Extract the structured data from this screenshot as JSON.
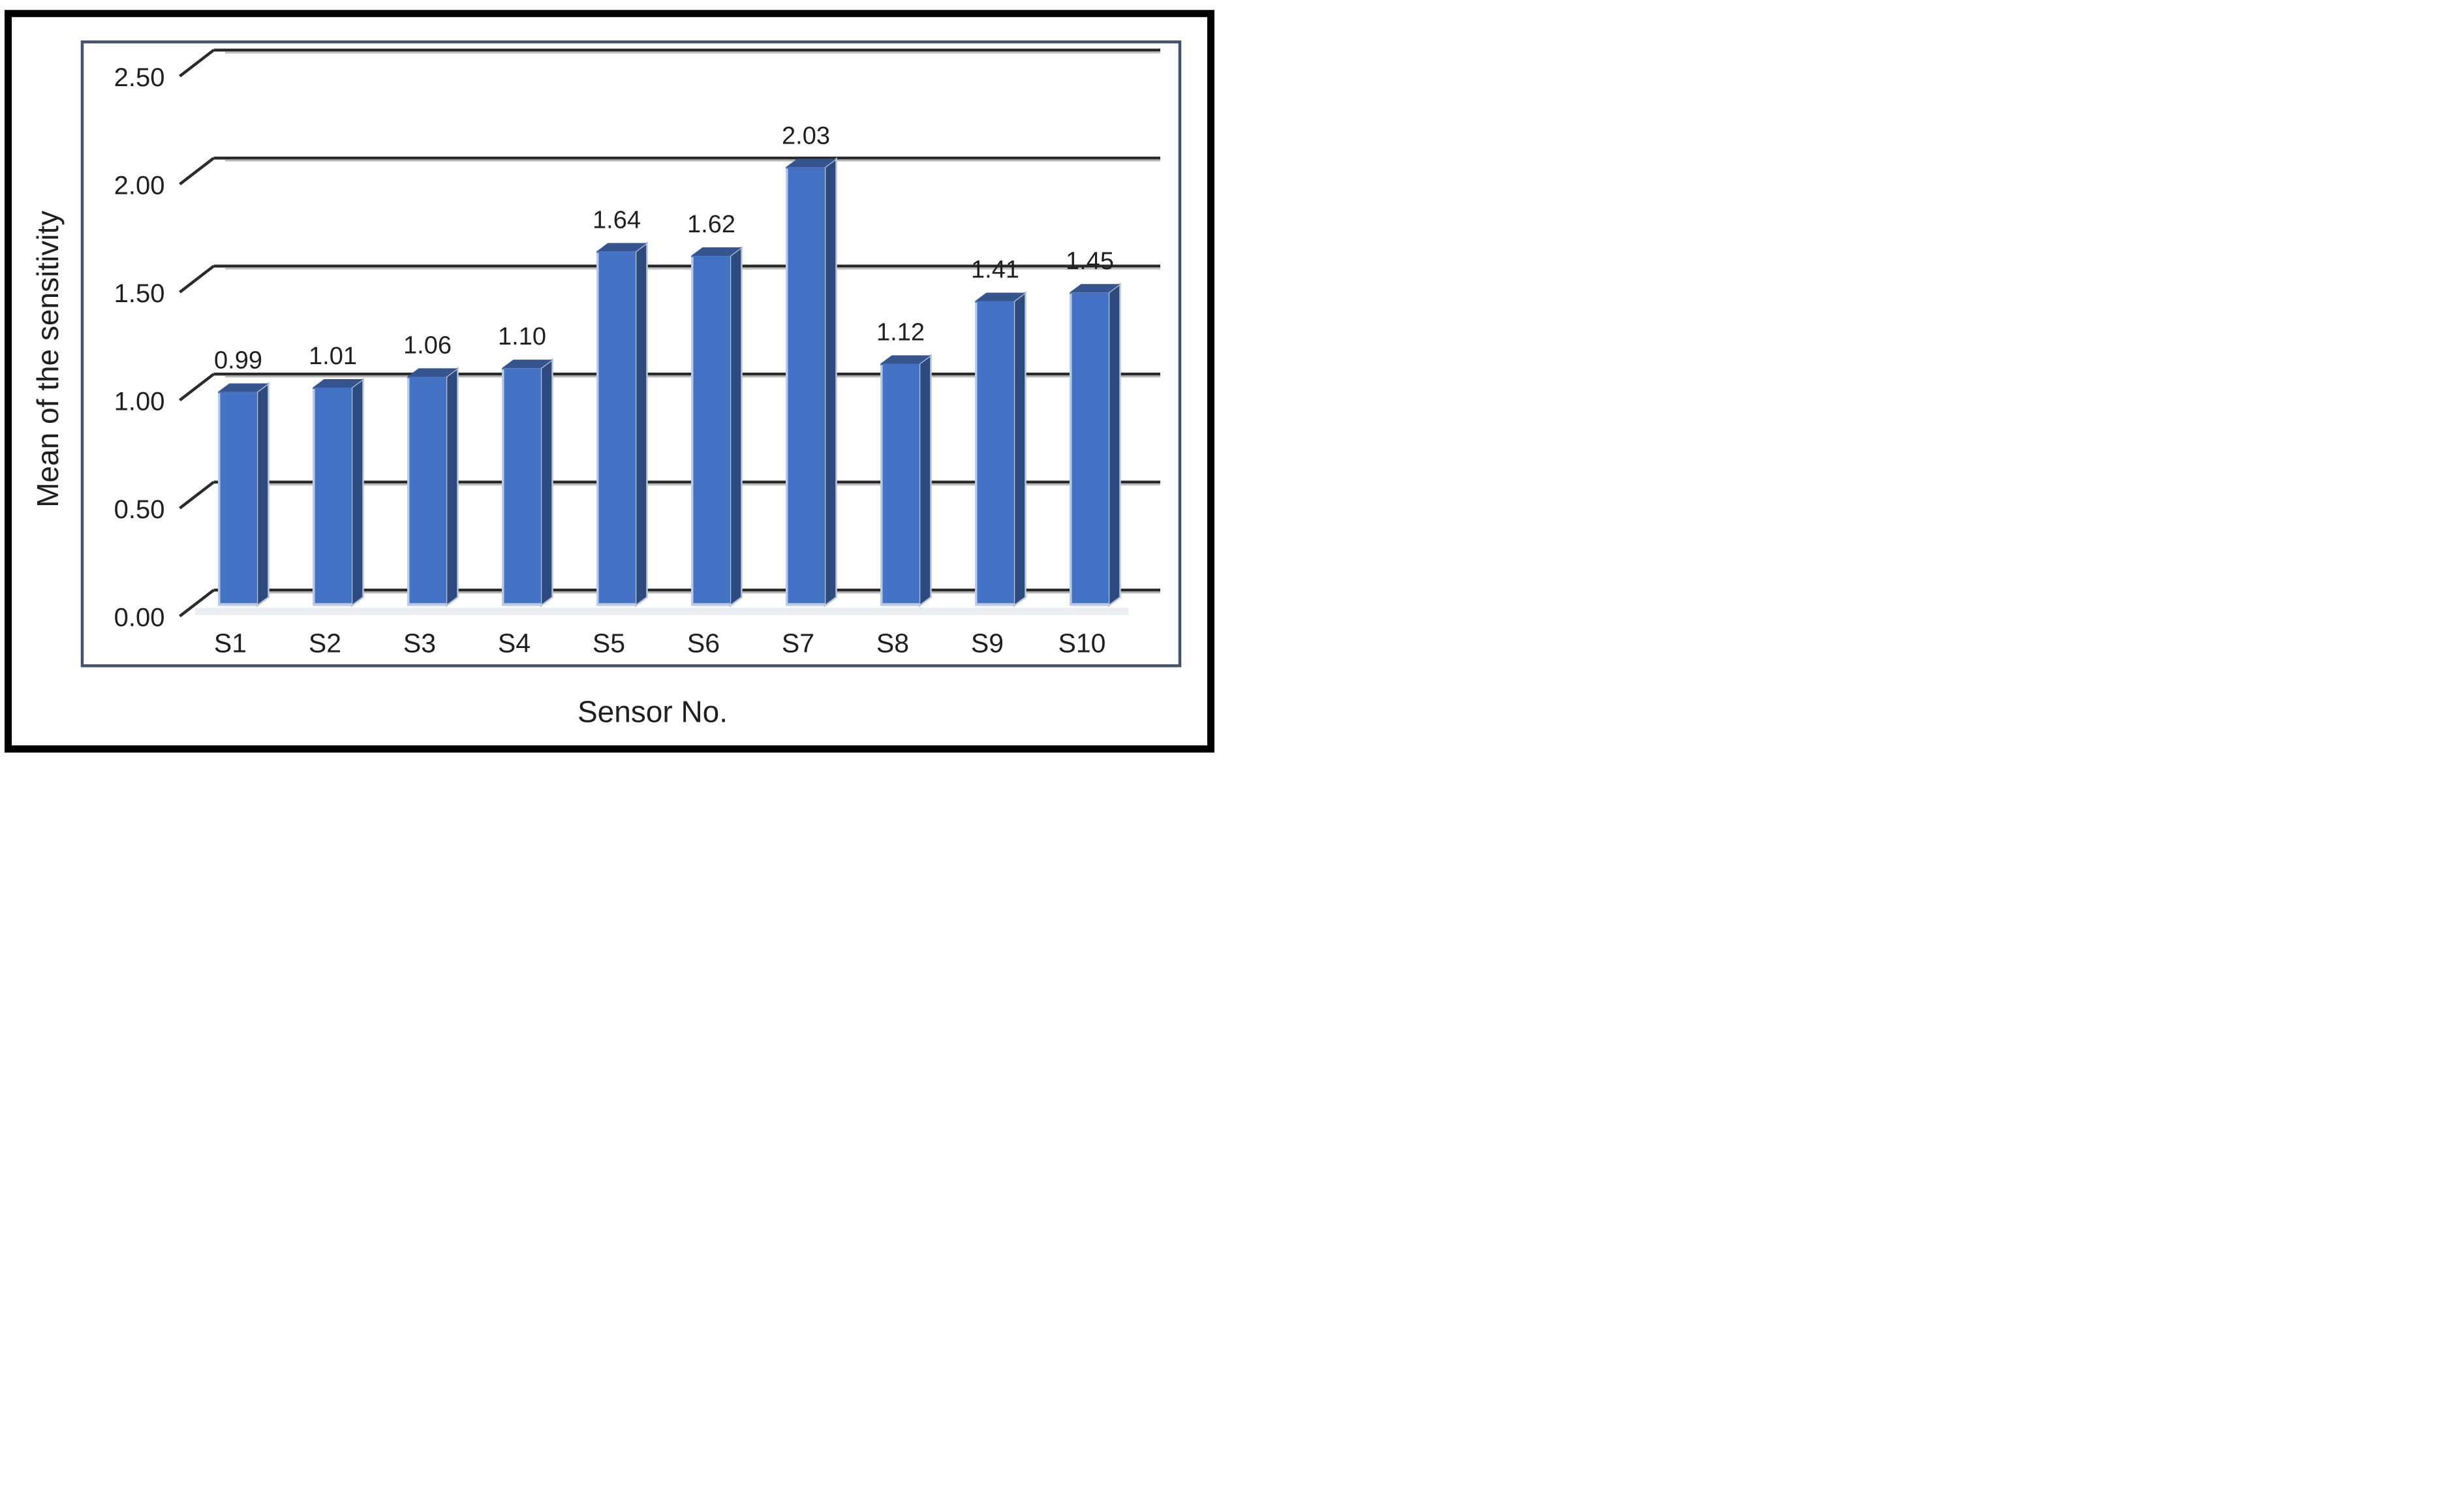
{
  "figure": {
    "description": "3D clustered column chart of mean sensitivity per sensor"
  },
  "chart_data": {
    "type": "bar",
    "style": "3d-clustered-column",
    "title": "",
    "xlabel": "Sensor No.",
    "ylabel": "Mean of the sensitivity",
    "categories": [
      "S1",
      "S2",
      "S3",
      "S4",
      "S5",
      "S6",
      "S7",
      "S8",
      "S9",
      "S10"
    ],
    "series": [
      {
        "name": "Mean of the sensitivity",
        "values": [
          0.99,
          1.01,
          1.06,
          1.1,
          1.64,
          1.62,
          2.03,
          1.12,
          1.41,
          1.45
        ]
      }
    ],
    "data_labels": [
      "0.99",
      "1.01",
      "1.06",
      "1.10",
      "1.64",
      "1.62",
      "2.03",
      "1.12",
      "1.41",
      "1.45"
    ],
    "y_axis": {
      "min": 0,
      "max": 2.5,
      "interval": 0.5,
      "tick_labels": [
        "0.00",
        "0.50",
        "1.00",
        "1.50",
        "2.00",
        "2.50"
      ],
      "tick_values": [
        0,
        0.5,
        1,
        1.5,
        2,
        2.5
      ]
    },
    "x_axis": {
      "tick_labels": [
        "S1",
        "S2",
        "S3",
        "S4",
        "S5",
        "S6",
        "S7",
        "S8",
        "S9",
        "S10"
      ]
    },
    "legend": {
      "visible": false
    },
    "grid": true,
    "colors": {
      "bar_front": "#4472C4",
      "bar_top": "#36548E",
      "bar_side": "#2C4A7E",
      "bar_light_edge": "#B9CBE8",
      "bar_side_halo": "#B9C6DE",
      "gridline": "#2B2B2B",
      "gridline_shadow": "#ACACAC",
      "plot_border": "#44546A",
      "outer_border": "#000000",
      "floor": "#ECEDF2",
      "text": "#1F1F1F",
      "background": "#FFFFFF"
    }
  }
}
